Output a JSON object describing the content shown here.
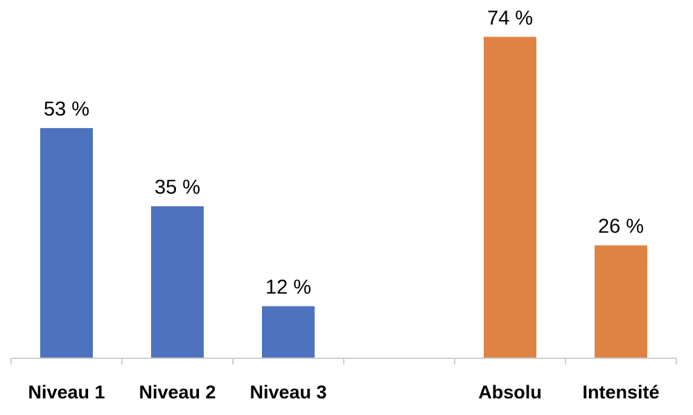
{
  "chart_data": {
    "type": "bar",
    "categories": [
      "Niveau 1",
      "Niveau 2",
      "Niveau 3",
      "",
      "Absolu",
      "Intensité"
    ],
    "values": [
      53,
      35,
      12,
      null,
      74,
      26
    ],
    "data_labels": [
      "53 %",
      "35 %",
      "12 %",
      "",
      "74 %",
      "26 %"
    ],
    "bar_colors": [
      "#4F72BE",
      "#4F72BE",
      "#4F72BE",
      "",
      "#DE8344",
      "#DE8344"
    ],
    "ylim": [
      0,
      100
    ],
    "grid": false,
    "legend": "none",
    "title": "",
    "xlabel": "",
    "ylabel": ""
  }
}
